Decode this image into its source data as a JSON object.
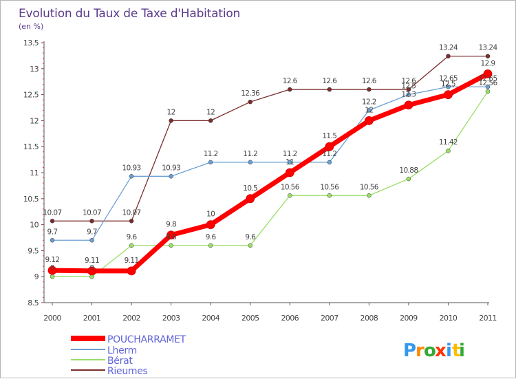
{
  "chart_data": {
    "type": "line",
    "title": "Evolution du Taux de Taxe d'Habitation",
    "subtitle": "(en %)",
    "x": [
      "2000",
      "2001",
      "2002",
      "2003",
      "2004",
      "2005",
      "2006",
      "2007",
      "2008",
      "2009",
      "2010",
      "2011"
    ],
    "ylim": [
      8.5,
      13.5
    ],
    "yticks": [
      "8.5",
      "9",
      "9.5",
      "10",
      "10.5",
      "11",
      "11.5",
      "12",
      "12.5",
      "13",
      "13.5"
    ],
    "grid": false,
    "legend_position": "bottom-left",
    "series": [
      {
        "name": "POUCHARRAMET",
        "color": "#ff0000",
        "values": [
          9.12,
          9.11,
          9.11,
          9.8,
          10,
          10.5,
          11,
          11.5,
          12,
          12.3,
          12.5,
          12.9
        ],
        "labels": [
          "9.12",
          "9.11",
          "9.11",
          "9.8",
          "10",
          "10.5",
          "11",
          "11.5",
          "12",
          "12.3",
          "12.5",
          "12.9"
        ]
      },
      {
        "name": "Lherm",
        "color": "#6b9fd4",
        "values": [
          9.7,
          9.7,
          10.93,
          10.93,
          11.2,
          11.2,
          11.2,
          11.2,
          12.2,
          12.5,
          12.65,
          12.65
        ],
        "labels": [
          "9.7",
          "9.7",
          "10.93",
          "10.93",
          "11.2",
          "11.2",
          "11.2",
          "11.2",
          "12.2",
          "12.5",
          "12.65",
          "12.65"
        ]
      },
      {
        "name": "Bérat",
        "color": "#99dd66",
        "values": [
          9,
          9,
          9.6,
          9.6,
          9.6,
          9.6,
          10.56,
          10.56,
          10.56,
          10.88,
          11.42,
          12.56
        ],
        "labels": [
          "9",
          "9",
          "9.6",
          "9.6",
          "9.6",
          "9.6",
          "10.56",
          "10.56",
          "10.56",
          "10.88",
          "11.42",
          "12.56"
        ]
      },
      {
        "name": "Rieumes",
        "color": "#7b2d2d",
        "values": [
          10.07,
          10.07,
          10.07,
          12,
          12,
          12.36,
          12.6,
          12.6,
          12.6,
          12.6,
          13.24,
          13.24
        ],
        "labels": [
          "10.07",
          "10.07",
          "10.07",
          "12",
          "12",
          "12.36",
          "12.6",
          "12.6",
          "12.6",
          "12.6",
          "13.24",
          "13.24"
        ]
      }
    ]
  },
  "brand": {
    "letters": [
      "P",
      "r",
      "o",
      "x",
      "i",
      "t",
      "i"
    ],
    "colors": [
      "#3399ee",
      "#ff8800",
      "#33aa33",
      "#ff3300",
      "#3399ee",
      "#ffbb00",
      "#33aa33"
    ]
  }
}
